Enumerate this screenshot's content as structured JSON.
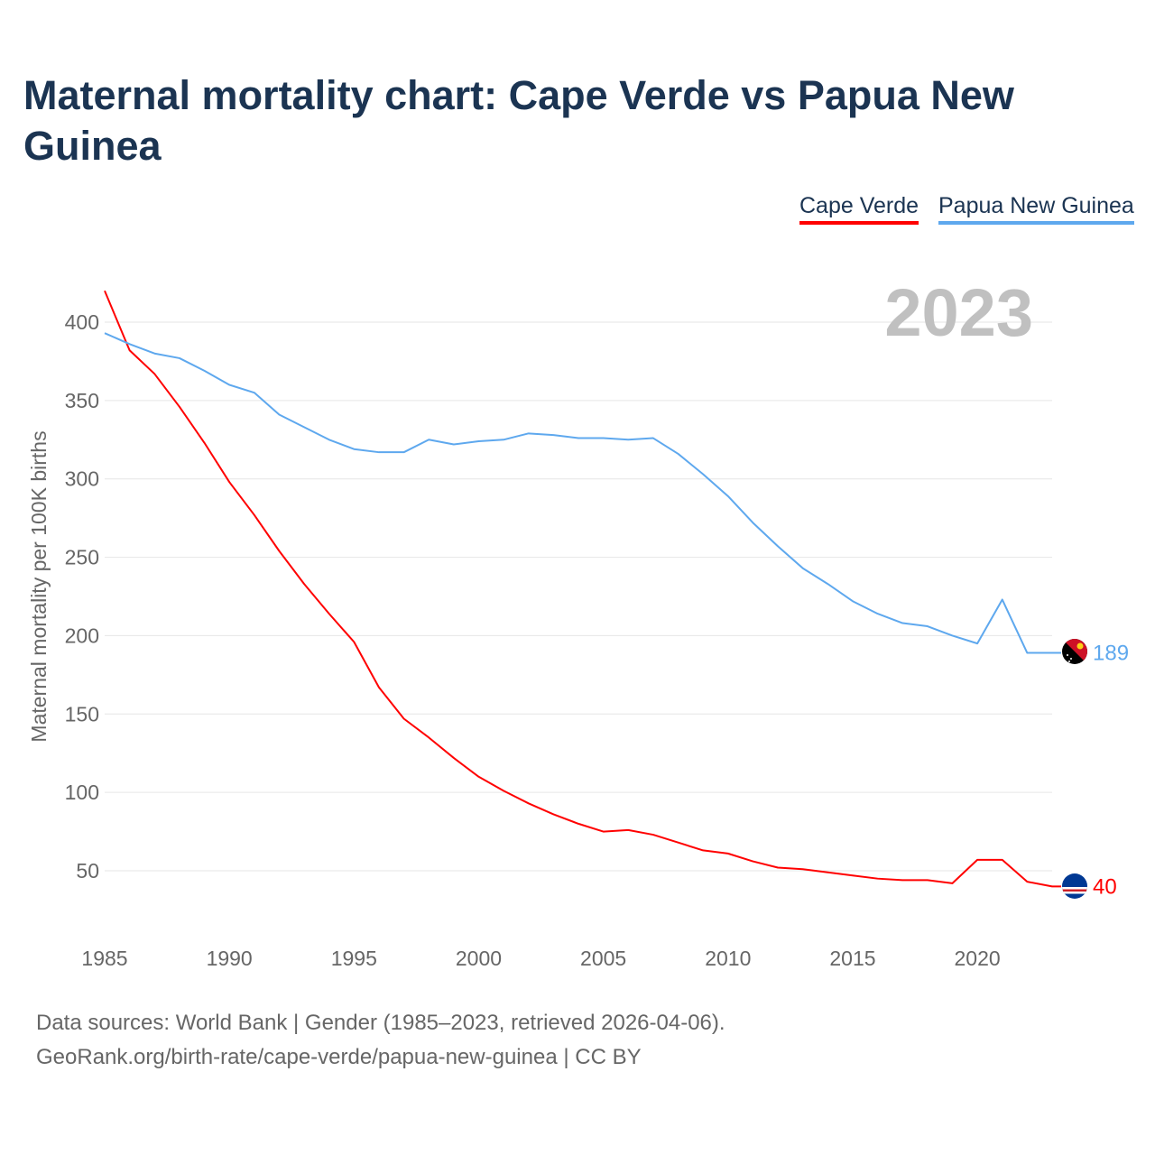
{
  "title": "Maternal mortality chart: Cape Verde vs Papua New Guinea",
  "legend": [
    {
      "label": "Cape Verde",
      "color": "#ff0000"
    },
    {
      "label": "Papua New Guinea",
      "color": "#5ea8ee"
    }
  ],
  "year_watermark": "2023",
  "chart_data": {
    "type": "line",
    "title": "Maternal mortality chart: Cape Verde vs Papua New Guinea",
    "xlabel": "",
    "ylabel": "Maternal mortality per 100K births",
    "xlim": [
      1985,
      2023
    ],
    "ylim": [
      20,
      420
    ],
    "x_ticks": [
      1985,
      1990,
      1995,
      2000,
      2005,
      2010,
      2015,
      2020
    ],
    "y_ticks": [
      50,
      100,
      150,
      200,
      250,
      300,
      350,
      400
    ],
    "grid": true,
    "legend_position": "top-right",
    "x": [
      1985,
      1986,
      1987,
      1988,
      1989,
      1990,
      1991,
      1992,
      1993,
      1994,
      1995,
      1996,
      1997,
      1998,
      1999,
      2000,
      2001,
      2002,
      2003,
      2004,
      2005,
      2006,
      2007,
      2008,
      2009,
      2010,
      2011,
      2012,
      2013,
      2014,
      2015,
      2016,
      2017,
      2018,
      2019,
      2020,
      2021,
      2022,
      2023
    ],
    "series": [
      {
        "name": "Cape Verde",
        "color": "#ff0000",
        "end_label": "40",
        "values": [
          420,
          382,
          367,
          346,
          323,
          298,
          277,
          254,
          233,
          214,
          196,
          167,
          147,
          135,
          122,
          110,
          101,
          93,
          86,
          80,
          75,
          76,
          73,
          68,
          63,
          61,
          56,
          52,
          51,
          49,
          47,
          45,
          44,
          44,
          42,
          57,
          57,
          43,
          40
        ]
      },
      {
        "name": "Papua New Guinea",
        "color": "#5ea8ee",
        "end_label": "189",
        "values": [
          393,
          386,
          380,
          377,
          369,
          360,
          355,
          341,
          333,
          325,
          319,
          317,
          317,
          325,
          322,
          324,
          325,
          329,
          328,
          326,
          326,
          325,
          326,
          316,
          303,
          289,
          272,
          257,
          243,
          233,
          222,
          214,
          208,
          206,
          200,
          195,
          223,
          189,
          189
        ]
      }
    ]
  },
  "footer": {
    "line1": "Data sources: World Bank | Gender (1985–2023, retrieved 2026-04-06).",
    "line2": "GeoRank.org/birth-rate/cape-verde/papua-new-guinea | CC BY"
  }
}
